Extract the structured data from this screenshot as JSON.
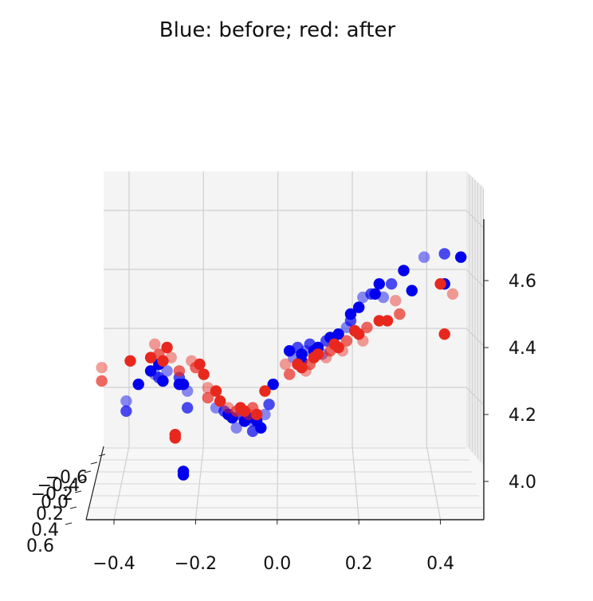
{
  "chart_data": {
    "type": "scatter",
    "projection": "3d",
    "title": "Blue: before; red: after",
    "xlabel": "",
    "ylabel": "",
    "zlabel": "",
    "grid": true,
    "colors": {
      "before": "#0000ee",
      "after": "#e8281e"
    },
    "x_ticks": [
      "−0.4",
      "−0.2",
      "0.0",
      "0.2",
      "0.4"
    ],
    "y_ticks": [
      "−0.6",
      "−0.4",
      "−0.2",
      "0.0",
      "0.2",
      "0.4",
      "0.6"
    ],
    "z_ticks": [
      "4.0",
      "4.2",
      "4.4",
      "4.6"
    ],
    "xlim": [
      -0.46,
      0.52
    ],
    "zlim": [
      3.93,
      4.78
    ],
    "series": [
      {
        "color": "#0000ee",
        "points": [
          [
            -0.37,
            4.24
          ],
          [
            -0.37,
            4.21
          ],
          [
            -0.34,
            4.29
          ],
          [
            -0.31,
            4.33
          ],
          [
            -0.3,
            4.32
          ],
          [
            -0.29,
            4.31
          ],
          [
            -0.28,
            4.3
          ],
          [
            -0.29,
            4.35
          ],
          [
            -0.27,
            4.33
          ],
          [
            -0.24,
            4.31
          ],
          [
            -0.24,
            4.29
          ],
          [
            -0.23,
            4.29
          ],
          [
            -0.22,
            4.27
          ],
          [
            -0.22,
            4.22
          ],
          [
            -0.23,
            4.03
          ],
          [
            -0.23,
            4.02
          ],
          [
            -0.15,
            4.22
          ],
          [
            -0.13,
            4.21
          ],
          [
            -0.12,
            4.2
          ],
          [
            -0.11,
            4.19
          ],
          [
            -0.1,
            4.16
          ],
          [
            -0.09,
            4.2
          ],
          [
            -0.08,
            4.18
          ],
          [
            -0.07,
            4.19
          ],
          [
            -0.06,
            4.18
          ],
          [
            -0.06,
            4.15
          ],
          [
            -0.05,
            4.18
          ],
          [
            -0.04,
            4.16
          ],
          [
            -0.03,
            4.2
          ],
          [
            -0.02,
            4.23
          ],
          [
            -0.01,
            4.29
          ],
          [
            0.03,
            4.39
          ],
          [
            0.04,
            4.37
          ],
          [
            0.05,
            4.4
          ],
          [
            0.06,
            4.38
          ],
          [
            0.06,
            4.36
          ],
          [
            0.07,
            4.39
          ],
          [
            0.08,
            4.41
          ],
          [
            0.09,
            4.39
          ],
          [
            0.1,
            4.4
          ],
          [
            0.11,
            4.38
          ],
          [
            0.12,
            4.42
          ],
          [
            0.13,
            4.43
          ],
          [
            0.15,
            4.44
          ],
          [
            0.17,
            4.46
          ],
          [
            0.18,
            4.48
          ],
          [
            0.18,
            4.5
          ],
          [
            0.2,
            4.52
          ],
          [
            0.21,
            4.55
          ],
          [
            0.23,
            4.56
          ],
          [
            0.24,
            4.56
          ],
          [
            0.25,
            4.59
          ],
          [
            0.26,
            4.55
          ],
          [
            0.28,
            4.59
          ],
          [
            0.31,
            4.63
          ],
          [
            0.33,
            4.57
          ],
          [
            0.36,
            4.67
          ],
          [
            0.41,
            4.68
          ],
          [
            0.41,
            4.59
          ],
          [
            0.45,
            4.67
          ]
        ]
      },
      {
        "color": "#e8281e",
        "points": [
          [
            -0.43,
            4.34
          ],
          [
            -0.43,
            4.3
          ],
          [
            -0.36,
            4.36
          ],
          [
            -0.31,
            4.37
          ],
          [
            -0.3,
            4.41
          ],
          [
            -0.29,
            4.38
          ],
          [
            -0.28,
            4.36
          ],
          [
            -0.27,
            4.4
          ],
          [
            -0.26,
            4.37
          ],
          [
            -0.24,
            4.33
          ],
          [
            -0.25,
            4.14
          ],
          [
            -0.25,
            4.13
          ],
          [
            -0.21,
            4.36
          ],
          [
            -0.2,
            4.34
          ],
          [
            -0.19,
            4.35
          ],
          [
            -0.18,
            4.32
          ],
          [
            -0.17,
            4.28
          ],
          [
            -0.17,
            4.25
          ],
          [
            -0.15,
            4.27
          ],
          [
            -0.14,
            4.24
          ],
          [
            -0.12,
            4.22
          ],
          [
            -0.1,
            4.21
          ],
          [
            -0.09,
            4.22
          ],
          [
            -0.08,
            4.21
          ],
          [
            -0.07,
            4.2
          ],
          [
            -0.06,
            4.22
          ],
          [
            -0.05,
            4.2
          ],
          [
            -0.03,
            4.27
          ],
          [
            0.02,
            4.35
          ],
          [
            0.03,
            4.32
          ],
          [
            0.05,
            4.35
          ],
          [
            0.06,
            4.34
          ],
          [
            0.07,
            4.33
          ],
          [
            0.08,
            4.35
          ],
          [
            0.09,
            4.37
          ],
          [
            0.1,
            4.38
          ],
          [
            0.12,
            4.37
          ],
          [
            0.13,
            4.39
          ],
          [
            0.14,
            4.41
          ],
          [
            0.15,
            4.4
          ],
          [
            0.16,
            4.39
          ],
          [
            0.17,
            4.42
          ],
          [
            0.19,
            4.45
          ],
          [
            0.2,
            4.44
          ],
          [
            0.21,
            4.42
          ],
          [
            0.22,
            4.46
          ],
          [
            0.25,
            4.48
          ],
          [
            0.27,
            4.48
          ],
          [
            0.29,
            4.54
          ],
          [
            0.3,
            4.5
          ],
          [
            0.4,
            4.59
          ],
          [
            0.41,
            4.44
          ],
          [
            0.43,
            4.56
          ]
        ]
      }
    ]
  }
}
